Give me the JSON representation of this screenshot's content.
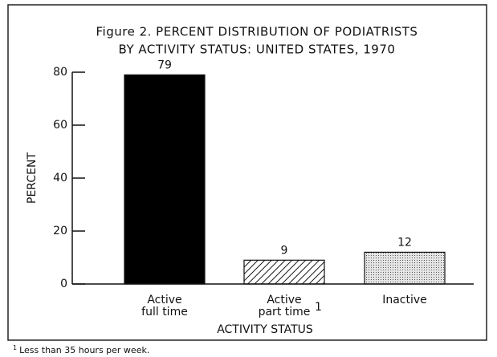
{
  "chart_data": {
    "type": "bar",
    "title": [
      "Figure 2. PERCENT DISTRIBUTION OF PODIATRISTS",
      "BY ACTIVITY STATUS: UNITED STATES, 1970"
    ],
    "categories": [
      "Active\nfull time",
      "Active\npart time",
      "Inactive"
    ],
    "category_footnotes": [
      null,
      "1",
      null
    ],
    "values": [
      79,
      9,
      12
    ],
    "patterns": [
      "solid",
      "hatched",
      "stippled"
    ],
    "color": "#000000",
    "ylim": [
      0,
      80
    ],
    "yticks": [
      0,
      20,
      40,
      60,
      80
    ],
    "ylabel": "PERCENT",
    "xlabel": "ACTIVITY STATUS",
    "footnote": {
      "marker": "1",
      "text": "Less than 35 hours per week."
    }
  }
}
